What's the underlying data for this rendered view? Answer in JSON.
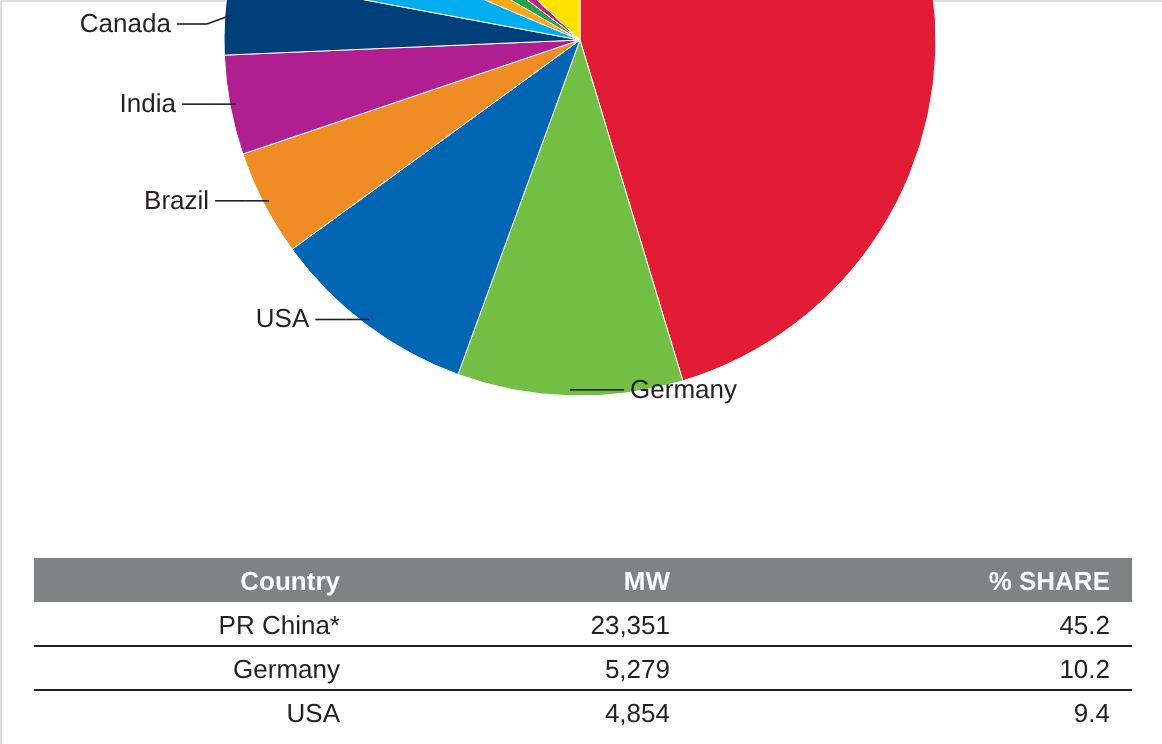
{
  "chart_data": {
    "type": "pie",
    "categories": [
      null,
      "Germany",
      "USA",
      "Brazil",
      "India",
      "Canada",
      null,
      null,
      null,
      null,
      null
    ],
    "values": [
      45.2,
      10.2,
      9.4,
      4.8,
      4.5,
      3.6,
      3.4,
      2.0,
      2.0,
      1.6,
      13.0
    ],
    "colors": [
      "#e31c35",
      "#72bf44",
      "#0066b3",
      "#f08c24",
      "#b01e8f",
      "#003f7a",
      "#00aeef",
      "#f6a81c",
      "#2aa04a",
      "#c2208a",
      "#ffe100"
    ],
    "annotations": [
      "Country",
      "MW",
      "% SHARE",
      "PR China*",
      "23,351",
      "45.2",
      "Germany",
      "5,279",
      "10.2",
      "USA",
      "4,854",
      "9.4"
    ]
  }
}
